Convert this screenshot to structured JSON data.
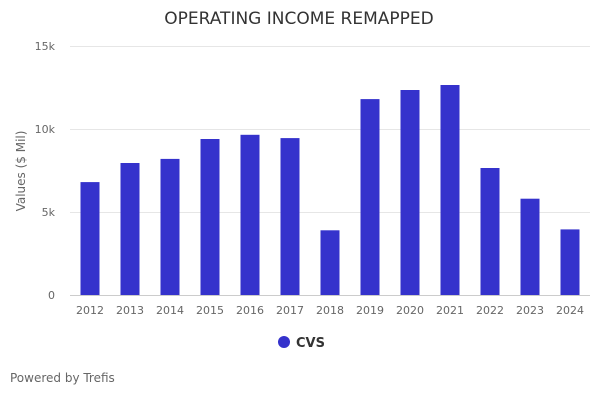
{
  "chart_data": {
    "type": "bar",
    "title": "OPERATING INCOME REMAPPED",
    "xlabel": "",
    "ylabel": "Values ($ Mil)",
    "categories": [
      "2012",
      "2013",
      "2014",
      "2015",
      "2016",
      "2017",
      "2018",
      "2019",
      "2020",
      "2021",
      "2022",
      "2023",
      "2024"
    ],
    "series": [
      {
        "name": "CVS",
        "color": "#3532cc",
        "values": [
          6800,
          7950,
          8200,
          9400,
          9650,
          9450,
          3900,
          11800,
          12350,
          12650,
          7650,
          5800,
          3950
        ]
      }
    ],
    "ylim": [
      0,
      15000
    ],
    "yticks": [
      0,
      5000,
      10000,
      15000
    ],
    "ytick_labels": [
      "0",
      "5k",
      "10k",
      "15k"
    ],
    "grid": true,
    "legend_position": "bottom-center"
  },
  "footer": {
    "credit": "Powered by Trefis"
  }
}
